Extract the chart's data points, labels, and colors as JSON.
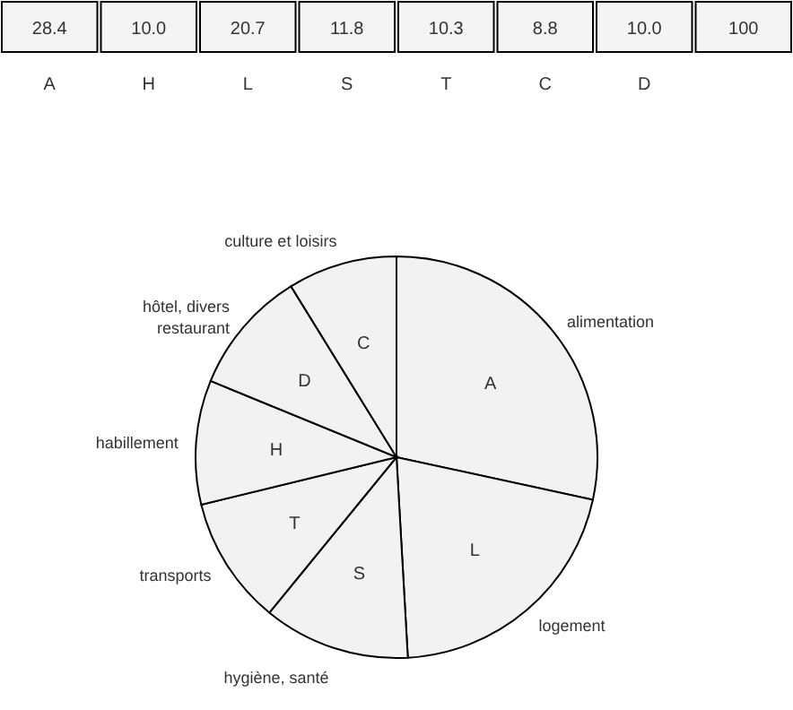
{
  "chart_data": [
    {
      "type": "other",
      "categories": [
        "A",
        "H",
        "L",
        "S",
        "T",
        "C",
        "D",
        null
      ],
      "values": [
        28.4,
        10.0,
        20.7,
        11.8,
        10.3,
        8.8,
        10.0,
        100
      ],
      "value_labels": [
        "28.4",
        "10.0",
        "20.7",
        "11.8",
        "10.3",
        "8.8",
        "10.0",
        "100"
      ]
    },
    {
      "type": "pie",
      "categories": [
        "A",
        "L",
        "S",
        "T",
        "H",
        "D",
        "C"
      ],
      "values": [
        28.4,
        20.7,
        11.8,
        10.3,
        10.0,
        10.0,
        8.8
      ],
      "colors": [
        "#f2f2f2",
        "#f2f2f2",
        "#f2f2f2",
        "#f2f2f2",
        "#f2f2f2",
        "#f2f2f2",
        "#f2f2f2"
      ],
      "annotations": [
        {
          "text": "alimentation",
          "x": "A"
        },
        {
          "text": "logement",
          "x": "L"
        },
        {
          "text": "hygiène, santé",
          "x": "S"
        },
        {
          "text": "transports",
          "x": "T"
        },
        {
          "text": "habillement",
          "x": "H"
        },
        {
          "text": "hôtel, divers restaurant",
          "x": "D"
        },
        {
          "text": "culture et loisirs",
          "x": "C"
        }
      ]
    }
  ]
}
